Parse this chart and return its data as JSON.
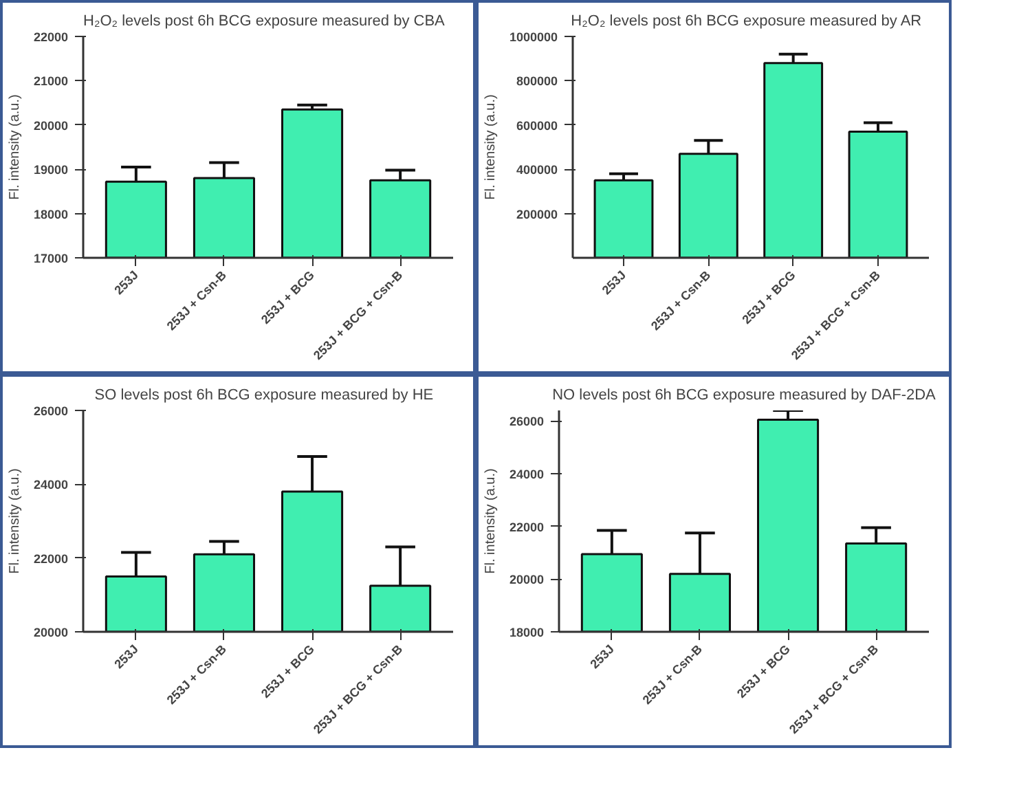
{
  "chart_data": [
    {
      "type": "bar",
      "title": "H₂O₂  levels post 6h  BCG exposure measured by CBA",
      "ylabel": "Fl. intensity (a.u.)",
      "categories": [
        "253J",
        "253J + Csn-B",
        "253J + BCG",
        "253J + BCG + Csn-B"
      ],
      "values": [
        18720,
        18800,
        20350,
        18750
      ],
      "errors": [
        330,
        350,
        100,
        230
      ],
      "color": "#40eeb0",
      "ylim": [
        17000,
        22000
      ],
      "yticks": [
        17000,
        18000,
        19000,
        20000,
        21000,
        22000
      ],
      "grid": false
    },
    {
      "type": "bar",
      "title": "H₂O₂  levels post 6h  BCG exposure measured by AR",
      "ylabel": "Fl. intensity (a.u.)",
      "categories": [
        "253J",
        "253J + Csn-B",
        "253J + BCG",
        "253J + BCG + Csn-B"
      ],
      "values": [
        350000,
        470000,
        880000,
        570000
      ],
      "errors": [
        30000,
        60000,
        40000,
        40000
      ],
      "color": "#40eeb0",
      "ylim": [
        0,
        1000000
      ],
      "yticks": [
        200000,
        400000,
        600000,
        800000,
        1000000
      ],
      "grid": false
    },
    {
      "type": "bar",
      "title": "SO  levels post 6h  BCG exposure measured by HE",
      "ylabel": "Fl. intensity (a.u.)",
      "categories": [
        "253J",
        "253J + Csn-B",
        "253J + BCG",
        "253J + BCG + Csn-B"
      ],
      "values": [
        21500,
        22100,
        23800,
        21250
      ],
      "errors": [
        650,
        350,
        950,
        1050
      ],
      "color": "#40eeb0",
      "ylim": [
        20000,
        26000
      ],
      "yticks": [
        20000,
        22000,
        24000,
        26000
      ],
      "grid": false
    },
    {
      "type": "bar",
      "title": "NO levels post 6h BCG exposure measured by DAF-2DA",
      "ylabel": "Fl. intensity (a.u.)",
      "categories": [
        "253J",
        "253J + Csn-B",
        "253J + BCG",
        "253J + BCG + Csn-B"
      ],
      "values": [
        20950,
        20200,
        26050,
        21350
      ],
      "errors": [
        900,
        1550,
        350,
        600
      ],
      "color": "#40eeb0",
      "ylim": [
        18000,
        26400
      ],
      "yticks": [
        18000,
        20000,
        22000,
        24000,
        26000
      ],
      "grid": false
    }
  ]
}
